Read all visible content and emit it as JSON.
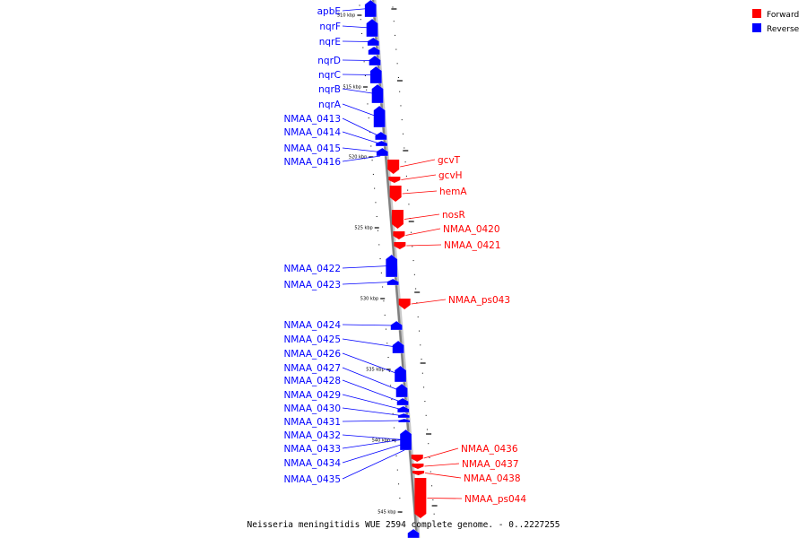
{
  "caption": "Neisseria meningitidis WUE 2594 complete genome. - 0..2227255",
  "colors": {
    "forward": "#ff0000",
    "reverse": "#0000ff",
    "axis": "#808080"
  },
  "legend": [
    {
      "label": "Forward",
      "color": "#ff0000"
    },
    {
      "label": "Reverse",
      "color": "#0000ff"
    }
  ],
  "scale_labels": [
    "510 kbp",
    "515 kbp",
    "520 kbp",
    "525 kbp",
    "530 kbp",
    "535 kbp",
    "540 kbp",
    "545 kbp"
  ],
  "reverse_genes": [
    "apbE",
    "nqrF",
    "nqrE",
    "nqrD",
    "nqrC",
    "nqrB",
    "nqrA",
    "NMAA_0413",
    "NMAA_0414",
    "NMAA_0415",
    "NMAA_0416",
    "NMAA_0422",
    "NMAA_0423",
    "NMAA_0424",
    "NMAA_0425",
    "NMAA_0426",
    "NMAA_0427",
    "NMAA_0428",
    "NMAA_0429",
    "NMAA_0430",
    "NMAA_0431",
    "NMAA_0432",
    "NMAA_0433",
    "NMAA_0434",
    "NMAA_0435"
  ],
  "forward_genes": [
    "gcvT",
    "gcvH",
    "hemA",
    "nosR",
    "NMAA_0420",
    "NMAA_0421",
    "NMAA_ps043",
    "NMAA_0436",
    "NMAA_0437",
    "NMAA_0438",
    "NMAA_ps044"
  ]
}
